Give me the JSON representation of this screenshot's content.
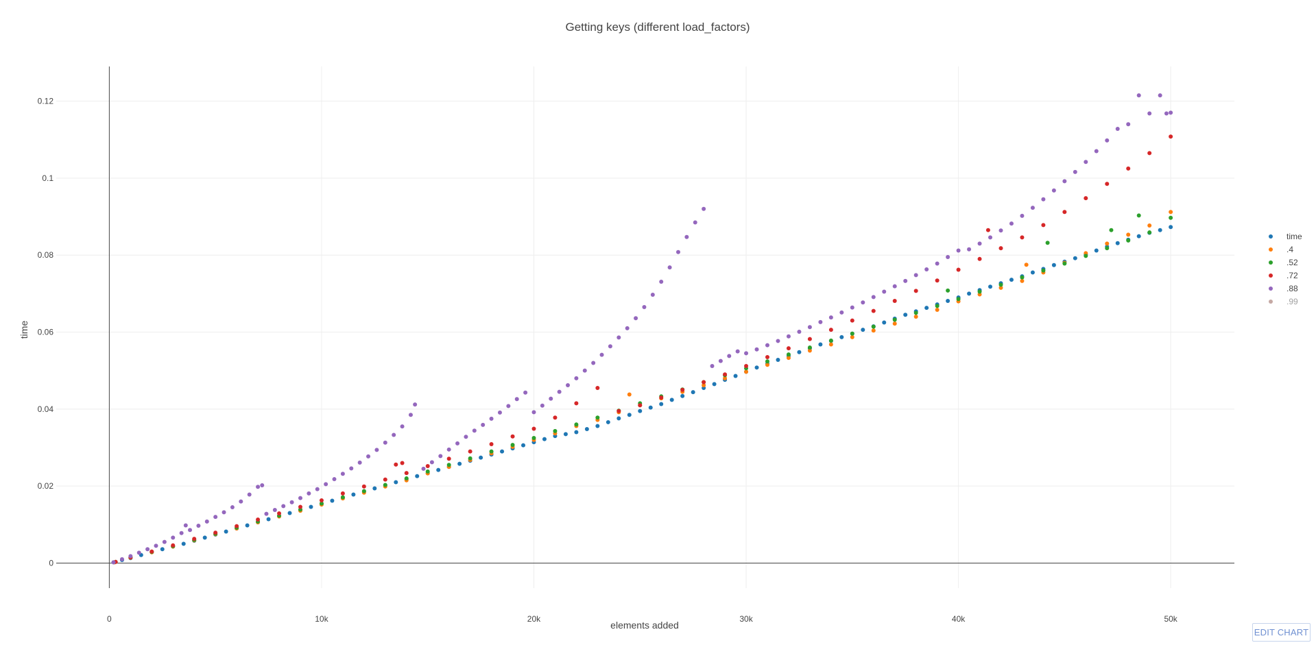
{
  "edit_button_label": "EDIT CHART",
  "chart_data": {
    "type": "scatter",
    "title": "Getting keys (different load_factors)",
    "xlabel": "elements added",
    "ylabel": "time",
    "xlim": [
      -2500,
      53000
    ],
    "ylim": [
      -0.0065,
      0.129
    ],
    "x_ticks": [
      0,
      10000,
      20000,
      30000,
      40000,
      50000
    ],
    "x_tick_labels": [
      "0",
      "10k",
      "20k",
      "30k",
      "40k",
      "50k"
    ],
    "y_ticks": [
      0,
      0.02,
      0.04,
      0.06,
      0.08,
      0.1,
      0.12
    ],
    "y_tick_labels": [
      "0",
      "0.02",
      "0.04",
      "0.06",
      "0.08",
      "0.1",
      "0.12"
    ],
    "grid": true,
    "legend_position": "right",
    "series": [
      {
        "name": "time",
        "color": "#1f77b4",
        "x": [
          200,
          600,
          1000,
          1500,
          2000,
          2500,
          3000,
          3500,
          4000,
          4500,
          5000,
          5500,
          6000,
          6500,
          7000,
          7500,
          8000,
          8500,
          9000,
          9500,
          10000,
          10500,
          11000,
          11500,
          12000,
          12500,
          13000,
          13500,
          14000,
          14500,
          15000,
          15500,
          16000,
          16500,
          17000,
          17500,
          18000,
          18500,
          19000,
          19500,
          20000,
          20500,
          21000,
          21500,
          22000,
          22500,
          23000,
          23500,
          24000,
          24500,
          25000,
          25500,
          26000,
          26500,
          27000,
          27500,
          28000,
          28500,
          29000,
          29500,
          30000,
          30500,
          31000,
          31500,
          32000,
          32500,
          33000,
          33500,
          34000,
          34500,
          35000,
          35500,
          36000,
          36500,
          37000,
          37500,
          38000,
          38500,
          39000,
          39500,
          40000,
          40500,
          41000,
          41500,
          42000,
          42500,
          43000,
          43500,
          44000,
          44500,
          45000,
          45500,
          46000,
          46500,
          47000,
          47500,
          48000,
          48500,
          49000,
          49500,
          50000
        ],
        "y": [
          0.0002,
          0.0008,
          0.0013,
          0.0021,
          0.0029,
          0.0036,
          0.0043,
          0.005,
          0.0058,
          0.0066,
          0.0074,
          0.0082,
          0.009,
          0.0098,
          0.0106,
          0.0114,
          0.0122,
          0.013,
          0.0138,
          0.0146,
          0.0154,
          0.0162,
          0.017,
          0.0178,
          0.0186,
          0.0194,
          0.0202,
          0.021,
          0.0218,
          0.0226,
          0.0234,
          0.0242,
          0.025,
          0.0258,
          0.0266,
          0.0274,
          0.0282,
          0.029,
          0.0298,
          0.0306,
          0.0314,
          0.0322,
          0.033,
          0.0335,
          0.034,
          0.0348,
          0.0356,
          0.0366,
          0.0376,
          0.0385,
          0.0395,
          0.0404,
          0.0413,
          0.0424,
          0.0434,
          0.0444,
          0.0455,
          0.0465,
          0.0476,
          0.0486,
          0.0497,
          0.0508,
          0.0518,
          0.0528,
          0.0538,
          0.0548,
          0.0558,
          0.0568,
          0.0577,
          0.0587,
          0.0596,
          0.0606,
          0.0615,
          0.0625,
          0.0635,
          0.0645,
          0.0654,
          0.0663,
          0.0672,
          0.0681,
          0.069,
          0.07,
          0.0709,
          0.0718,
          0.0727,
          0.0736,
          0.0745,
          0.0755,
          0.0764,
          0.0774,
          0.0783,
          0.0792,
          0.0802,
          0.0812,
          0.0822,
          0.0831,
          0.084,
          0.0849,
          0.0858,
          0.0865,
          0.0873
        ]
      },
      {
        "name": ".4",
        "color": "#ff7f0e",
        "x": [
          250,
          1000,
          2000,
          3000,
          4000,
          5000,
          6000,
          7000,
          8000,
          9000,
          10000,
          11000,
          12000,
          13000,
          14000,
          15000,
          16000,
          17000,
          18000,
          19000,
          20000,
          21000,
          22000,
          23000,
          24000,
          24500,
          25000,
          26000,
          27000,
          28000,
          29000,
          30000,
          31000,
          32000,
          33000,
          34000,
          35000,
          36000,
          37000,
          38000,
          39000,
          40000,
          41000,
          42000,
          43000,
          43200,
          44000,
          45000,
          46000,
          47000,
          48000,
          49000,
          50000
        ],
        "y": [
          0.0002,
          0.0014,
          0.0028,
          0.0043,
          0.0059,
          0.0075,
          0.009,
          0.0106,
          0.0121,
          0.0136,
          0.0152,
          0.0168,
          0.0183,
          0.0199,
          0.0215,
          0.0233,
          0.025,
          0.0268,
          0.0285,
          0.0302,
          0.032,
          0.0337,
          0.0356,
          0.0372,
          0.0392,
          0.0438,
          0.041,
          0.0428,
          0.0445,
          0.0462,
          0.048,
          0.0497,
          0.0515,
          0.0533,
          0.0552,
          0.0568,
          0.0587,
          0.0604,
          0.0622,
          0.064,
          0.0658,
          0.068,
          0.0698,
          0.0715,
          0.0733,
          0.0775,
          0.0755,
          0.078,
          0.0805,
          0.083,
          0.0853,
          0.0877,
          0.0912
        ]
      },
      {
        "name": ".52",
        "color": "#2ca02c",
        "x": [
          300,
          1000,
          2000,
          3000,
          4000,
          5000,
          6000,
          7000,
          8000,
          9000,
          10000,
          11000,
          12000,
          13000,
          14000,
          15000,
          16000,
          17000,
          18000,
          19000,
          20000,
          21000,
          22000,
          23000,
          24000,
          25000,
          26000,
          27000,
          28000,
          29000,
          30000,
          31000,
          32000,
          33000,
          34000,
          35000,
          36000,
          37000,
          38000,
          39000,
          39500,
          40000,
          41000,
          42000,
          43000,
          44000,
          44200,
          45000,
          46000,
          47000,
          47200,
          48000,
          48500,
          49000,
          50000
        ],
        "y": [
          0.0003,
          0.0015,
          0.0029,
          0.0044,
          0.006,
          0.0076,
          0.0092,
          0.0108,
          0.0123,
          0.0139,
          0.0155,
          0.0171,
          0.0187,
          0.0203,
          0.022,
          0.0238,
          0.0255,
          0.0272,
          0.029,
          0.0307,
          0.0325,
          0.0343,
          0.036,
          0.0378,
          0.0396,
          0.0415,
          0.0433,
          0.0451,
          0.047,
          0.0488,
          0.0506,
          0.0524,
          0.0542,
          0.056,
          0.0578,
          0.0596,
          0.0614,
          0.0632,
          0.065,
          0.0668,
          0.0708,
          0.0686,
          0.0705,
          0.0723,
          0.0742,
          0.076,
          0.0832,
          0.0778,
          0.0798,
          0.0818,
          0.0865,
          0.0838,
          0.0903,
          0.0859,
          0.0897
        ]
      },
      {
        "name": ".72",
        "color": "#d62728",
        "x": [
          300,
          1000,
          2000,
          3000,
          4000,
          5000,
          6000,
          7000,
          8000,
          9000,
          10000,
          11000,
          12000,
          13000,
          13500,
          13800,
          14000,
          15000,
          16000,
          17000,
          18000,
          19000,
          20000,
          21000,
          22000,
          23000,
          24000,
          25000,
          26000,
          27000,
          28000,
          29000,
          30000,
          31000,
          32000,
          33000,
          34000,
          35000,
          36000,
          37000,
          38000,
          39000,
          40000,
          41000,
          41400,
          42000,
          43000,
          44000,
          45000,
          46000,
          47000,
          48000,
          49000,
          50000
        ],
        "y": [
          0.0003,
          0.0015,
          0.003,
          0.0046,
          0.0063,
          0.0079,
          0.0096,
          0.0113,
          0.0129,
          0.0146,
          0.0163,
          0.0181,
          0.0199,
          0.0217,
          0.0256,
          0.026,
          0.0234,
          0.0252,
          0.0271,
          0.029,
          0.0309,
          0.0329,
          0.0349,
          0.0378,
          0.0415,
          0.0455,
          0.0395,
          0.041,
          0.043,
          0.045,
          0.047,
          0.049,
          0.0512,
          0.0535,
          0.0558,
          0.0582,
          0.0606,
          0.063,
          0.0655,
          0.0681,
          0.0707,
          0.0734,
          0.0762,
          0.079,
          0.0865,
          0.0818,
          0.0846,
          0.0878,
          0.0912,
          0.0948,
          0.0985,
          0.1025,
          0.1065,
          0.1108
        ]
      },
      {
        "name": ".88",
        "color": "#9467bd",
        "x": [
          200,
          600,
          1000,
          1400,
          1800,
          2200,
          2600,
          3000,
          3400,
          3600,
          3800,
          4200,
          4600,
          5000,
          5400,
          5800,
          6200,
          6600,
          7000,
          7200,
          7400,
          7800,
          8200,
          8600,
          9000,
          9400,
          9800,
          10200,
          10600,
          11000,
          11400,
          11800,
          12200,
          12600,
          13000,
          13400,
          13800,
          14200,
          14400,
          14800,
          15200,
          15600,
          16000,
          16400,
          16800,
          17200,
          17600,
          18000,
          18400,
          18800,
          19200,
          19600,
          20000,
          20400,
          20800,
          21200,
          21600,
          22000,
          22400,
          22800,
          23200,
          23600,
          24000,
          24400,
          24800,
          25200,
          25600,
          26000,
          26400,
          26800,
          27200,
          27600,
          28000,
          28400,
          28800,
          29200,
          29600,
          30000,
          30500,
          31000,
          31500,
          32000,
          32500,
          33000,
          33500,
          34000,
          34500,
          35000,
          35500,
          36000,
          36500,
          37000,
          37500,
          38000,
          38500,
          39000,
          39500,
          40000,
          40500,
          41000,
          41500,
          42000,
          42500,
          43000,
          43500,
          44000,
          44500,
          45000,
          45500,
          46000,
          46500,
          47000,
          47500,
          48000,
          48500,
          49000,
          49500,
          49800,
          50000
        ],
        "y": [
          0.0002,
          0.001,
          0.0018,
          0.0027,
          0.0036,
          0.0045,
          0.0055,
          0.0066,
          0.0078,
          0.0098,
          0.0086,
          0.0097,
          0.0108,
          0.012,
          0.0132,
          0.0145,
          0.016,
          0.0178,
          0.0198,
          0.0202,
          0.0128,
          0.0138,
          0.0148,
          0.0158,
          0.0169,
          0.0181,
          0.0192,
          0.0205,
          0.0218,
          0.0232,
          0.0246,
          0.0261,
          0.0277,
          0.0294,
          0.0313,
          0.0333,
          0.0355,
          0.0385,
          0.0412,
          0.0245,
          0.0262,
          0.0278,
          0.0295,
          0.0311,
          0.0328,
          0.0344,
          0.0359,
          0.0375,
          0.0391,
          0.0408,
          0.0426,
          0.0443,
          0.0392,
          0.0409,
          0.0427,
          0.0445,
          0.0462,
          0.048,
          0.05,
          0.052,
          0.0541,
          0.0563,
          0.0586,
          0.061,
          0.0636,
          0.0665,
          0.0697,
          0.0731,
          0.0768,
          0.0808,
          0.0847,
          0.0885,
          0.092,
          0.0512,
          0.0525,
          0.0538,
          0.055,
          0.0545,
          0.0555,
          0.0566,
          0.0577,
          0.0589,
          0.0601,
          0.0613,
          0.0626,
          0.0638,
          0.0651,
          0.0664,
          0.0677,
          0.0691,
          0.0705,
          0.0719,
          0.0733,
          0.0748,
          0.0763,
          0.0778,
          0.0795,
          0.0812,
          0.0815,
          0.083,
          0.0846,
          0.0864,
          0.0882,
          0.0902,
          0.0923,
          0.0945,
          0.0968,
          0.0992,
          0.1016,
          0.1042,
          0.107,
          0.1098,
          0.1128,
          0.114,
          0.1215,
          0.1168,
          0.1215,
          0.1168,
          0.117
        ]
      },
      {
        "name": ".99",
        "color": "#8c564b",
        "hidden": true,
        "x": [],
        "y": []
      }
    ]
  }
}
